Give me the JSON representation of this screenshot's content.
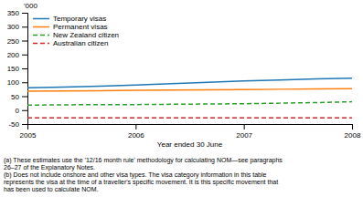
{
  "chart_data": {
    "type": "line",
    "ylabel": "'000",
    "xlabel": "Year ended 30 June",
    "x": [
      2005.0,
      2005.33,
      2005.67,
      2006.0,
      2006.33,
      2006.67,
      2007.0,
      2007.33,
      2007.67,
      2008.0
    ],
    "xlim": [
      2005,
      2008
    ],
    "ylim": [
      -50,
      350
    ],
    "xticks": [
      2005,
      2006,
      2007,
      2008
    ],
    "yticks": [
      -50,
      0,
      50,
      100,
      150,
      200,
      250,
      300,
      350
    ],
    "legend": "upper left",
    "series": [
      {
        "name": "Temporary visas",
        "line_style": "solid",
        "values": [
          80,
          83,
          86,
          90,
          95,
          100,
          105,
          108,
          112,
          115
        ]
      },
      {
        "name": "Permanent visas",
        "line_style": "solid",
        "values": [
          68,
          69,
          70,
          71,
          72,
          73,
          74,
          75,
          76,
          77
        ]
      },
      {
        "name": "New Zealand citizen",
        "line_style": "dashed",
        "values": [
          18,
          19,
          20,
          20,
          21,
          22,
          23,
          25,
          27,
          30
        ]
      },
      {
        "name": "Australian citizen",
        "line_style": "dashed",
        "values": [
          -28,
          -28,
          -28,
          -28,
          -28,
          -28,
          -28,
          -28,
          -28,
          -28
        ]
      }
    ],
    "footnote": [
      "(a) These estimates use the '12/16 month rule' methodology for calculating NOM—see paragraphs",
      "26–27 of the Explanatory Notes.",
      "(b) Does not include onshore and other visa types. The visa category information in this table",
      "represents the visa at the time of a traveller's specific movement. It is this specific movement that",
      "has been used to calculate NOM."
    ]
  }
}
